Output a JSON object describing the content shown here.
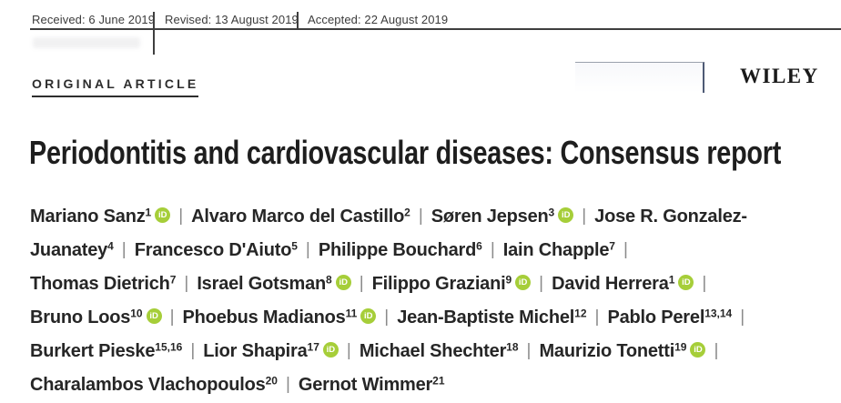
{
  "meta": {
    "received": "Received: 6 June 2019",
    "revised": "Revised: 13 August 2019",
    "accepted": "Accepted: 22 August 2019"
  },
  "branding": {
    "publisher": "WILEY"
  },
  "article": {
    "type_label": "ORIGINAL ARTICLE",
    "title": "Periodontitis and cardiovascular diseases: Consensus report"
  },
  "authors": {
    "separator": "|",
    "orcid_label": "iD",
    "orcid_color": "#a6ce39",
    "lines": [
      {
        "segments": [
          {
            "name": "Mariano Sanz",
            "sup": "1",
            "orcid": true,
            "sep": true
          },
          {
            "name": "Alvaro Marco del Castillo",
            "sup": "2",
            "orcid": false,
            "sep": true
          },
          {
            "name": "Søren Jepsen",
            "sup": "3",
            "orcid": true,
            "sep": true
          },
          {
            "name": "Jose R. Gonzalez-",
            "sup": "",
            "orcid": false,
            "sep": false
          }
        ]
      },
      {
        "segments": [
          {
            "name": "Juanatey",
            "sup": "4",
            "orcid": false,
            "sep": true
          },
          {
            "name": "Francesco D'Aiuto",
            "sup": "5",
            "orcid": false,
            "sep": true
          },
          {
            "name": "Philippe Bouchard",
            "sup": "6",
            "orcid": false,
            "sep": true
          },
          {
            "name": "Iain Chapple",
            "sup": "7",
            "orcid": false,
            "sep": true
          }
        ]
      },
      {
        "segments": [
          {
            "name": "Thomas Dietrich",
            "sup": "7",
            "orcid": false,
            "sep": true
          },
          {
            "name": "Israel Gotsman",
            "sup": "8",
            "orcid": true,
            "sep": true
          },
          {
            "name": "Filippo Graziani",
            "sup": "9",
            "orcid": true,
            "sep": true
          },
          {
            "name": "David Herrera",
            "sup": "1",
            "orcid": true,
            "sep": true
          }
        ]
      },
      {
        "segments": [
          {
            "name": "Bruno Loos",
            "sup": "10",
            "orcid": true,
            "sep": true
          },
          {
            "name": "Phoebus Madianos",
            "sup": "11",
            "orcid": true,
            "sep": true
          },
          {
            "name": "Jean-Baptiste Michel",
            "sup": "12",
            "orcid": false,
            "sep": true
          },
          {
            "name": "Pablo Perel",
            "sup": "13,14",
            "orcid": false,
            "sep": true
          }
        ]
      },
      {
        "segments": [
          {
            "name": "Burkert Pieske",
            "sup": "15,16",
            "orcid": false,
            "sep": true
          },
          {
            "name": "Lior Shapira",
            "sup": "17",
            "orcid": true,
            "sep": true
          },
          {
            "name": "Michael Shechter",
            "sup": "18",
            "orcid": false,
            "sep": true
          },
          {
            "name": "Maurizio Tonetti",
            "sup": "19",
            "orcid": true,
            "sep": true
          }
        ]
      },
      {
        "segments": [
          {
            "name": "Charalambos Vlachopoulos",
            "sup": "20",
            "orcid": false,
            "sep": true
          },
          {
            "name": "Gernot Wimmer",
            "sup": "21",
            "orcid": false,
            "sep": false
          }
        ]
      }
    ]
  }
}
